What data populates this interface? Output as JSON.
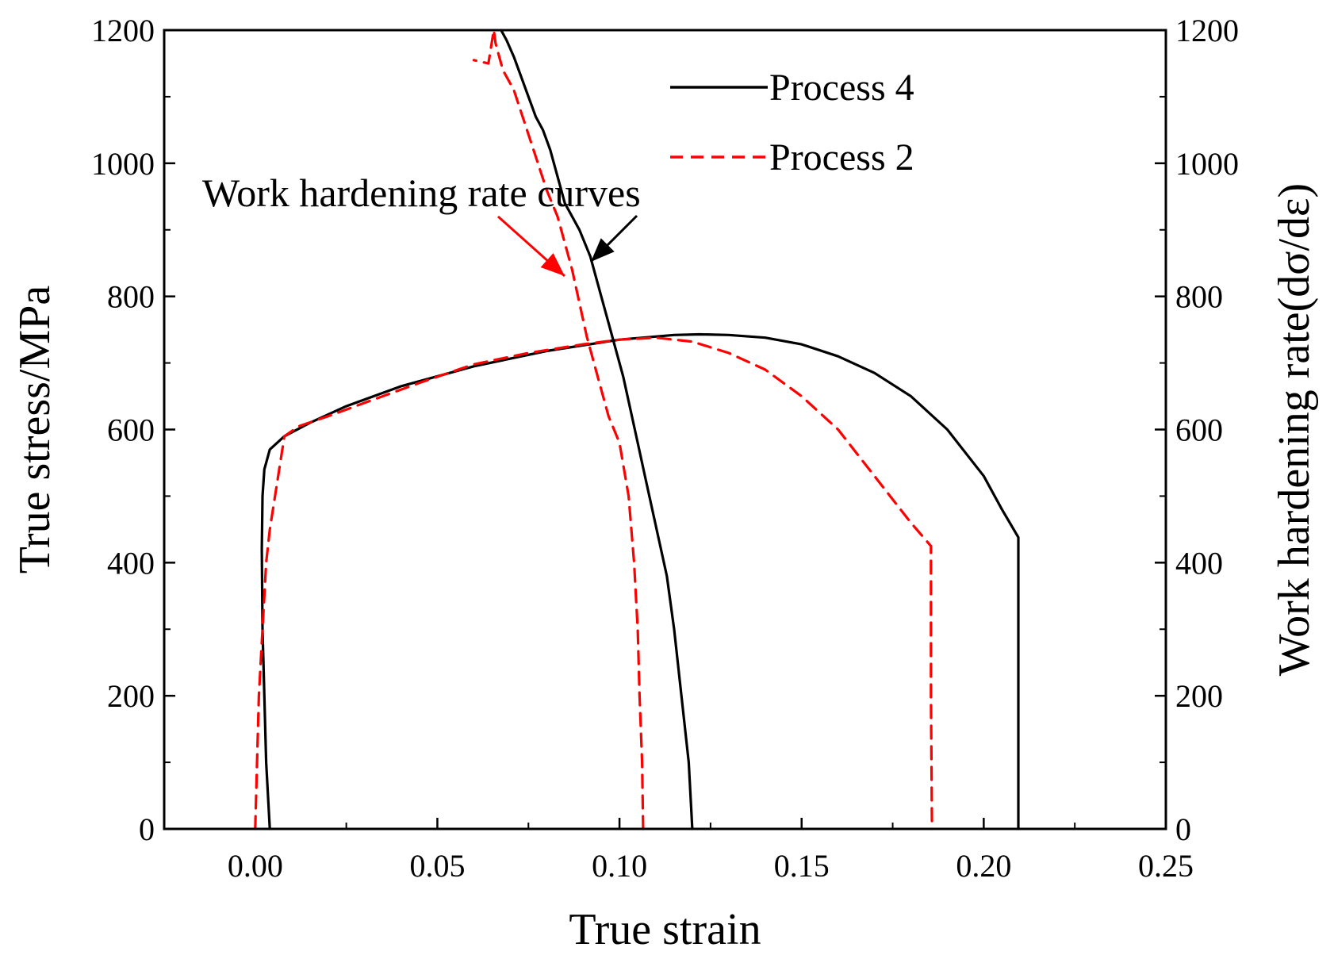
{
  "chart_data": {
    "type": "line",
    "xlabel": "True strain",
    "ylabel": "True stress/MPa",
    "ylabel_right": "Work hardening rate(dσ/dε)",
    "xlim": [
      -0.025,
      0.25
    ],
    "ylim": [
      0,
      1200
    ],
    "ylim_right": [
      0,
      1200
    ],
    "xticks": [
      "0.00",
      "0.05",
      "0.10",
      "0.15",
      "0.20",
      "0.25"
    ],
    "xtick_values": [
      0,
      0.05,
      0.1,
      0.15,
      0.2,
      0.25
    ],
    "yticks": [
      "0",
      "200",
      "400",
      "600",
      "800",
      "1000",
      "1200"
    ],
    "ytick_values": [
      0,
      200,
      400,
      600,
      800,
      1000,
      1200
    ],
    "legend_placement": "top-center",
    "grid": false,
    "annotation": "Work hardening rate curves",
    "colors": {
      "process4": "#000000",
      "process2": "#ff0000"
    },
    "series": [
      {
        "name": "Process 4",
        "kind": "stress-strain",
        "style": "solid",
        "x": [
          0.004,
          0.003,
          0.0025,
          0.002,
          0.0018,
          0.002,
          0.0025,
          0.004,
          0.008,
          0.015,
          0.025,
          0.04,
          0.06,
          0.08,
          0.1,
          0.115,
          0.122,
          0.13,
          0.14,
          0.15,
          0.16,
          0.17,
          0.18,
          0.19,
          0.2,
          0.205,
          0.2095,
          0.2095,
          0.2095
        ],
        "y": [
          0,
          100,
          200,
          300,
          420,
          500,
          540,
          570,
          590,
          610,
          635,
          665,
          695,
          718,
          735,
          742,
          743,
          742,
          738,
          728,
          710,
          685,
          650,
          600,
          530,
          480,
          438,
          250,
          0
        ]
      },
      {
        "name": "Process 2",
        "kind": "stress-strain",
        "style": "dashed",
        "x": [
          0.0,
          0.0005,
          0.001,
          0.002,
          0.003,
          0.004,
          0.006,
          0.008,
          0.012,
          0.02,
          0.03,
          0.045,
          0.06,
          0.075,
          0.09,
          0.1,
          0.11,
          0.12,
          0.13,
          0.14,
          0.15,
          0.16,
          0.17,
          0.18,
          0.1855,
          0.1855,
          0.1858
        ],
        "y": [
          0,
          100,
          200,
          300,
          400,
          450,
          520,
          590,
          605,
          620,
          640,
          670,
          698,
          715,
          728,
          735,
          738,
          732,
          715,
          690,
          650,
          600,
          530,
          460,
          425,
          200,
          0
        ]
      },
      {
        "name": "Process 4",
        "kind": "work-hardening-rate",
        "style": "solid",
        "x": [
          0.12,
          0.119,
          0.117,
          0.115,
          0.113,
          0.111,
          0.109,
          0.107,
          0.105,
          0.103,
          0.101,
          0.099,
          0.097,
          0.095,
          0.092,
          0.089,
          0.087,
          0.085,
          0.083,
          0.081,
          0.079,
          0.077,
          0.075,
          0.073,
          0.071,
          0.069,
          0.0675
        ],
        "y": [
          0,
          100,
          200,
          300,
          380,
          430,
          480,
          530,
          580,
          630,
          680,
          720,
          760,
          800,
          860,
          900,
          920,
          940,
          980,
          1020,
          1050,
          1070,
          1100,
          1130,
          1160,
          1185,
          1200
        ]
      },
      {
        "name": "Process 2",
        "kind": "work-hardening-rate",
        "style": "dashed",
        "x": [
          0.1065,
          0.1062,
          0.1055,
          0.105,
          0.104,
          0.1025,
          0.1,
          0.097,
          0.094,
          0.091,
          0.089,
          0.087,
          0.085,
          0.083,
          0.08,
          0.077,
          0.074,
          0.071,
          0.068,
          0.066,
          0.0655,
          0.064,
          0.06
        ],
        "y": [
          0,
          100,
          200,
          300,
          400,
          500,
          580,
          620,
          680,
          740,
          790,
          840,
          880,
          920,
          960,
          1010,
          1060,
          1110,
          1140,
          1180,
          1200,
          1150,
          1155
        ]
      }
    ]
  }
}
